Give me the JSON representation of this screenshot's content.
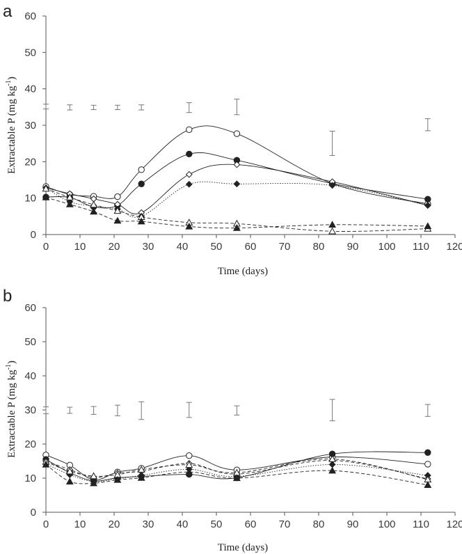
{
  "chart_data": [
    {
      "panel": "a",
      "type": "line",
      "xlabel": "Time (days)",
      "ylabel": "Extractable P (mg kg-1)",
      "ylabel_main": "Extractable P (mg kg",
      "ylabel_sup": "-1",
      "ylabel_close": ")",
      "xlim": [
        0,
        120
      ],
      "ylim": [
        0,
        60
      ],
      "xticks": [
        0,
        10,
        20,
        30,
        40,
        50,
        60,
        70,
        80,
        90,
        100,
        110,
        120
      ],
      "yticks": [
        0,
        10,
        20,
        30,
        40,
        50,
        60
      ],
      "grid": false,
      "series": [
        {
          "marker": "circle-open",
          "dash": "solid",
          "x": [
            0,
            7,
            14,
            21,
            28,
            42,
            56,
            84,
            112
          ],
          "y": [
            13.2,
            11.0,
            10.5,
            10.4,
            17.8,
            28.8,
            27.7,
            14.0,
            8.4
          ]
        },
        {
          "marker": "circle-filled",
          "dash": "solid",
          "x": [
            0,
            7,
            14,
            21,
            28,
            42,
            56,
            84,
            112
          ],
          "y": [
            10.3,
            10.2,
            7.6,
            8.0,
            13.9,
            22.1,
            20.4,
            14.0,
            9.7
          ]
        },
        {
          "marker": "diamond-open",
          "dash": "solid",
          "x": [
            0,
            7,
            14,
            21,
            28,
            42,
            56,
            84,
            112
          ],
          "y": [
            12.8,
            11.2,
            9.8,
            8.3,
            6.0,
            16.5,
            19.2,
            14.5,
            8.0
          ]
        },
        {
          "marker": "diamond-filled",
          "dash": "dotted",
          "x": [
            0,
            7,
            14,
            21,
            28,
            42,
            56,
            84,
            112
          ],
          "y": [
            12.8,
            9.0,
            7.8,
            7.0,
            5.0,
            13.8,
            13.9,
            13.5,
            8.0
          ]
        },
        {
          "marker": "triangle-open",
          "dash": "dashed",
          "x": [
            0,
            7,
            14,
            21,
            28,
            42,
            56,
            84,
            112
          ],
          "y": [
            12.6,
            10.2,
            8.2,
            6.5,
            4.8,
            3.3,
            3.0,
            0.9,
            1.6
          ]
        },
        {
          "marker": "triangle-filled",
          "dash": "dashed",
          "x": [
            0,
            7,
            14,
            21,
            28,
            42,
            56,
            84,
            112
          ],
          "y": [
            10.2,
            8.3,
            6.3,
            3.8,
            3.6,
            2.2,
            1.8,
            2.7,
            2.3
          ]
        }
      ],
      "error_bars": [
        {
          "x": 0,
          "low": 34.5,
          "high": 35.8
        },
        {
          "x": 7,
          "low": 34.2,
          "high": 35.6
        },
        {
          "x": 14,
          "low": 34.3,
          "high": 35.5
        },
        {
          "x": 21,
          "low": 34.3,
          "high": 35.5
        },
        {
          "x": 28,
          "low": 34.2,
          "high": 35.6
        },
        {
          "x": 42,
          "low": 33.5,
          "high": 36.2
        },
        {
          "x": 56,
          "low": 32.9,
          "high": 37.2
        },
        {
          "x": 84,
          "low": 21.7,
          "high": 28.4
        },
        {
          "x": 112,
          "low": 28.5,
          "high": 31.8
        }
      ]
    },
    {
      "panel": "b",
      "type": "line",
      "xlabel": "Time (days)",
      "ylabel": "Extractable P (mg kg-1)",
      "ylabel_main": "Extractable P (mg kg",
      "ylabel_sup": "-1",
      "ylabel_close": ")",
      "xlim": [
        0,
        120
      ],
      "ylim": [
        0,
        60
      ],
      "xticks": [
        0,
        10,
        20,
        30,
        40,
        50,
        60,
        70,
        80,
        90,
        100,
        110,
        120
      ],
      "yticks": [
        0,
        10,
        20,
        30,
        40,
        50,
        60
      ],
      "grid": false,
      "series": [
        {
          "marker": "circle-open",
          "dash": "solid",
          "x": [
            0,
            7,
            14,
            21,
            28,
            42,
            56,
            84,
            112
          ],
          "y": [
            16.8,
            13.8,
            9.5,
            11.8,
            12.9,
            16.6,
            12.4,
            16.2,
            14.1
          ]
        },
        {
          "marker": "circle-filled",
          "dash": "solid",
          "x": [
            0,
            7,
            14,
            21,
            28,
            42,
            56,
            84,
            112
          ],
          "y": [
            15.5,
            11.6,
            9.2,
            10.1,
            10.5,
            11.1,
            10.1,
            17.1,
            17.5
          ]
        },
        {
          "marker": "diamond-open",
          "dash": "dashed",
          "x": [
            0,
            7,
            14,
            21,
            28,
            42,
            56,
            84,
            112
          ],
          "y": [
            15.0,
            12.5,
            10.2,
            11.5,
            12.0,
            14.3,
            11.2,
            15.2,
            9.8
          ]
        },
        {
          "marker": "diamond-filled",
          "dash": "dotted",
          "x": [
            0,
            7,
            14,
            21,
            28,
            42,
            56,
            84,
            112
          ],
          "y": [
            14.2,
            11.0,
            9.0,
            9.8,
            10.8,
            12.6,
            10.5,
            14.0,
            10.8
          ]
        },
        {
          "marker": "triangle-open",
          "dash": "dashed",
          "x": [
            0,
            7,
            14,
            21,
            28,
            42,
            56,
            84,
            112
          ],
          "y": [
            14.8,
            12.0,
            10.6,
            11.0,
            12.5,
            13.9,
            11.6,
            15.6,
            9.6
          ]
        },
        {
          "marker": "triangle-filled",
          "dash": "dashed",
          "x": [
            0,
            7,
            14,
            21,
            28,
            42,
            56,
            84,
            112
          ],
          "y": [
            14.0,
            9.0,
            8.5,
            9.5,
            10.1,
            11.8,
            10.0,
            12.2,
            8.0
          ]
        }
      ],
      "error_bars": [
        {
          "x": 0,
          "low": 28.9,
          "high": 30.9
        },
        {
          "x": 7,
          "low": 29.0,
          "high": 30.8
        },
        {
          "x": 14,
          "low": 28.7,
          "high": 31.0
        },
        {
          "x": 21,
          "low": 28.3,
          "high": 31.4
        },
        {
          "x": 28,
          "low": 27.2,
          "high": 32.4
        },
        {
          "x": 42,
          "low": 27.8,
          "high": 32.2
        },
        {
          "x": 56,
          "low": 28.5,
          "high": 31.2
        },
        {
          "x": 84,
          "low": 26.8,
          "high": 33.1
        },
        {
          "x": 112,
          "low": 28.1,
          "high": 31.6
        }
      ]
    }
  ],
  "colors": {
    "axis": "#555555",
    "tick_text": "#3a3a3a",
    "series": "#222222",
    "error_bar": "#777777"
  }
}
